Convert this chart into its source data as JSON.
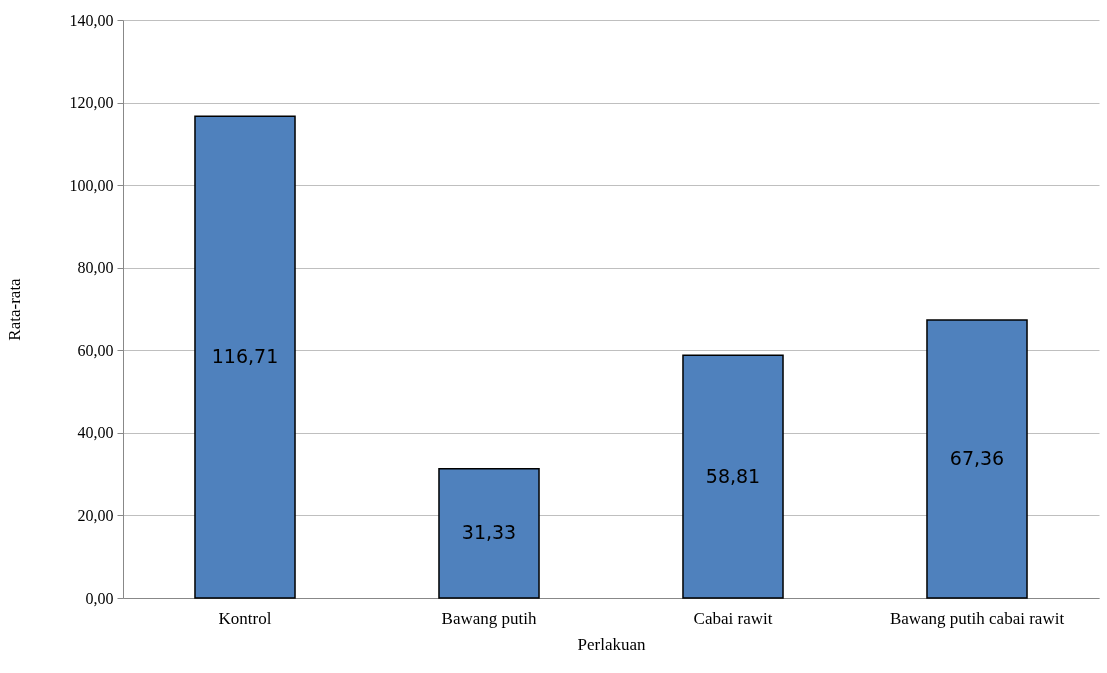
{
  "chart_data": {
    "type": "bar",
    "xlabel": "Perlakuan",
    "ylabel": "Rata-rata",
    "categories": [
      "Kontrol",
      "Bawang putih",
      "Cabai rawit",
      "Bawang putih cabai rawit"
    ],
    "values": [
      116.71,
      31.33,
      58.81,
      67.36
    ],
    "value_labels": [
      "116,71",
      "31,33",
      "58,81",
      "67,36"
    ],
    "color": "#4f81bd",
    "ylim": [
      0,
      140
    ],
    "yticks": [
      {
        "value": 0,
        "label": "0,00"
      },
      {
        "value": 20,
        "label": "20,00"
      },
      {
        "value": 40,
        "label": "40,00"
      },
      {
        "value": 60,
        "label": "60,00"
      },
      {
        "value": 80,
        "label": "80,00"
      },
      {
        "value": 100,
        "label": "100,00"
      },
      {
        "value": 120,
        "label": "120,00"
      },
      {
        "value": 140,
        "label": "140,00"
      }
    ],
    "grid": "y"
  }
}
